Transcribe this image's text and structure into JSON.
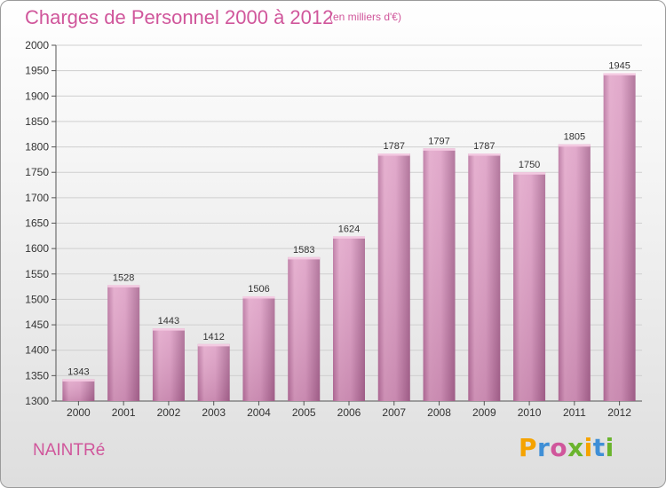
{
  "header": {
    "title": "Charges de Personnel 2000 à 2012",
    "subtitle": "(en milliers d'€)"
  },
  "footer": {
    "place": "NAINTRé"
  },
  "logo": {
    "letters": [
      "P",
      "r",
      "o",
      "x",
      "i",
      "t",
      "i"
    ],
    "colors": [
      "#f5a300",
      "#3f8fd6",
      "#d0569b",
      "#6ab42d",
      "#f5a300",
      "#3f8fd6",
      "#6ab42d"
    ]
  },
  "chart_data": {
    "type": "bar",
    "categories": [
      "2000",
      "2001",
      "2002",
      "2003",
      "2004",
      "2005",
      "2006",
      "2007",
      "2008",
      "2009",
      "2010",
      "2011",
      "2012"
    ],
    "values": [
      1343,
      1528,
      1443,
      1412,
      1506,
      1583,
      1624,
      1787,
      1797,
      1787,
      1750,
      1805,
      1945
    ],
    "yticks": [
      1300,
      1350,
      1400,
      1450,
      1500,
      1550,
      1600,
      1650,
      1700,
      1750,
      1800,
      1850,
      1900,
      1950,
      2000
    ],
    "ylim": [
      1300,
      2000
    ],
    "bar_color": "#d89ac0",
    "grid": true
  }
}
